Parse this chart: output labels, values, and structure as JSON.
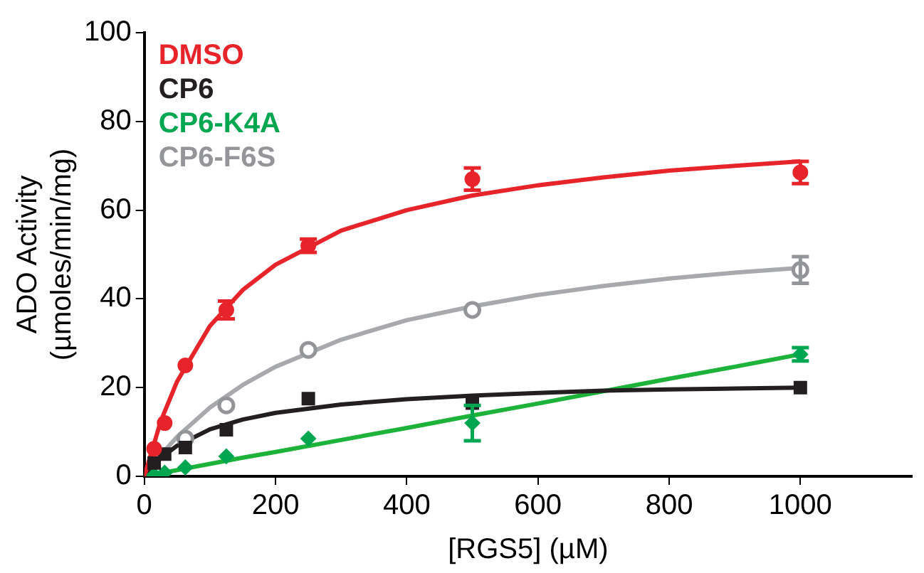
{
  "chart_data": {
    "type": "scatter",
    "xlabel": "[RGS5] (µM)",
    "ylabel": "ADO Activity\n(µmoles/min/mg)",
    "xlim": [
      0,
      1170
    ],
    "ylim": [
      0,
      100
    ],
    "xticks": [
      0,
      200,
      400,
      600,
      800,
      1000
    ],
    "yticks": [
      0,
      20,
      40,
      60,
      80,
      100
    ],
    "grid": false,
    "legend": "top left",
    "series": [
      {
        "type": "line",
        "color": "#e8242b",
        "marker": "none",
        "x": [
          0,
          25,
          50,
          100,
          150,
          200,
          300,
          400,
          500,
          600,
          700,
          800,
          900,
          1000
        ],
        "values": [
          0,
          12.4,
          21.4,
          33.9,
          42.0,
          47.7,
          55.4,
          60.0,
          63.3,
          65.6,
          67.4,
          68.9,
          70.0,
          71.0
        ]
      },
      {
        "type": "line",
        "color": "#231f20",
        "marker": "none",
        "x": [
          0,
          25,
          50,
          100,
          150,
          200,
          300,
          400,
          500,
          600,
          700,
          800,
          900,
          1000
        ],
        "values": [
          0,
          4.1,
          6.9,
          10.6,
          12.8,
          14.3,
          16.2,
          17.4,
          18.2,
          18.8,
          19.3,
          19.6,
          19.8,
          20.0
        ]
      },
      {
        "type": "line",
        "color": "#1db33a",
        "marker": "none",
        "x": [
          0,
          25,
          50,
          100,
          150,
          200,
          300,
          400,
          500,
          600,
          700,
          800,
          900,
          1000
        ],
        "values": [
          0,
          0.7,
          1.4,
          2.8,
          4.2,
          5.5,
          8.2,
          10.9,
          13.7,
          16.4,
          19.2,
          22.0,
          24.7,
          27.5
        ]
      },
      {
        "type": "line",
        "color": "#a7a9ac",
        "marker": "none",
        "x": [
          0,
          25,
          50,
          100,
          150,
          200,
          300,
          400,
          500,
          600,
          700,
          800,
          900,
          1000
        ],
        "values": [
          0,
          4.8,
          8.9,
          15.5,
          20.6,
          24.7,
          30.8,
          35.2,
          38.3,
          40.9,
          42.9,
          44.6,
          45.9,
          47.0
        ]
      },
      {
        "name": "DMSO",
        "type": "scatter",
        "color": "#e8242b",
        "marker": "circle",
        "x": [
          15,
          31,
          62.5,
          125,
          250,
          500,
          1000
        ],
        "values": [
          6.2,
          12,
          25,
          37.5,
          52,
          67,
          68.5
        ],
        "errors": [
          null,
          null,
          null,
          2,
          1.5,
          2.5,
          2.5
        ]
      },
      {
        "name": "CP6",
        "type": "scatter",
        "color": "#231f20",
        "marker": "square",
        "x": [
          15,
          31,
          62.5,
          125,
          250,
          500,
          1000
        ],
        "values": [
          3,
          5,
          6.5,
          10.5,
          17.5,
          16.5,
          20
        ],
        "errors": [
          null,
          null,
          null,
          null,
          null,
          null,
          null
        ]
      },
      {
        "name": "CP6-K4A",
        "type": "scatter",
        "color": "#00a650",
        "marker": "diamond",
        "x": [
          15,
          31,
          62.5,
          125,
          250,
          500,
          1000
        ],
        "values": [
          0.3,
          0.8,
          2,
          4.5,
          8.5,
          12,
          27.5
        ],
        "errors": [
          null,
          null,
          null,
          null,
          null,
          4,
          1.5
        ]
      },
      {
        "name": "CP6-F6S",
        "type": "scatter",
        "color": "#939598",
        "marker": "open circle",
        "x": [
          62.5,
          125,
          250,
          500,
          1000
        ],
        "values": [
          8.5,
          16,
          28.5,
          37.5,
          46.5
        ],
        "errors": [
          null,
          null,
          null,
          null,
          3
        ]
      }
    ]
  }
}
